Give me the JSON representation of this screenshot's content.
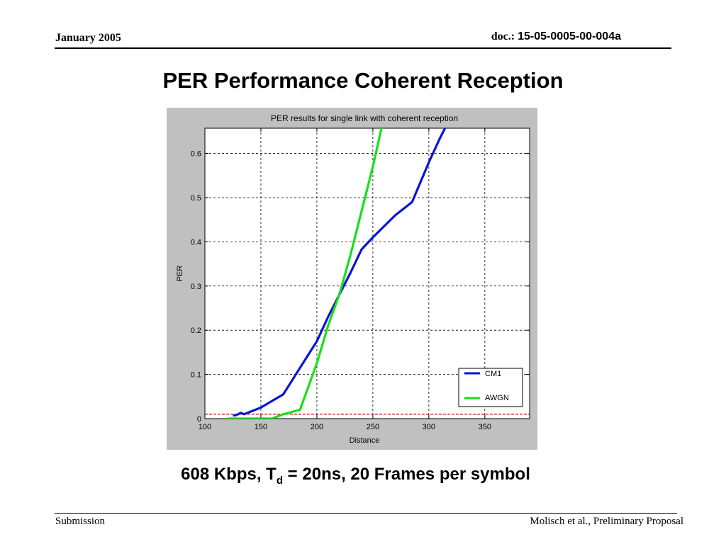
{
  "header": {
    "date": "January 2005",
    "doc_prefix": "doc.: ",
    "doc_number": "15-05-0005-00-004a"
  },
  "slide": {
    "title": "PER Performance Coherent Reception",
    "caption_part1": "608 Kbps, T",
    "caption_sub": "d",
    "caption_part2": " = 20ns, 20 Frames per symbol"
  },
  "footer": {
    "left": "Submission",
    "right": "Molisch et al., Preliminary Proposal"
  },
  "chart_data": {
    "type": "line",
    "title": "PER results for single link with coherent reception",
    "xlabel": "Distance",
    "ylabel": "PER",
    "xlim": [
      100,
      390
    ],
    "ylim": [
      0,
      0.657
    ],
    "xticks": [
      100,
      150,
      200,
      250,
      300,
      350
    ],
    "yticks": [
      0,
      0.1,
      0.2,
      0.3,
      0.4,
      0.5,
      0.6
    ],
    "grid": true,
    "legend_position": "bottom-right",
    "threshold": {
      "y": 0.01,
      "color": "#d00000",
      "style": "dashed"
    },
    "series": [
      {
        "name": "CM1",
        "color": "#0a14d2",
        "x": [
          125,
          128,
          132,
          135,
          140,
          150,
          160,
          170,
          185,
          200,
          210,
          220,
          230,
          240,
          250,
          260,
          270,
          280,
          285,
          300,
          310,
          315
        ],
        "y": [
          0.007,
          0.008,
          0.013,
          0.01,
          0.015,
          0.025,
          0.04,
          0.055,
          0.115,
          0.175,
          0.23,
          0.28,
          0.33,
          0.383,
          0.41,
          0.435,
          0.46,
          0.48,
          0.49,
          0.58,
          0.635,
          0.66
        ]
      },
      {
        "name": "AWGN",
        "color": "#18e018",
        "x": [
          120,
          140,
          150,
          160,
          170,
          185,
          195,
          200,
          210,
          220,
          230,
          240,
          250,
          258
        ],
        "y": [
          0,
          0,
          0,
          0,
          0.01,
          0.02,
          0.09,
          0.125,
          0.21,
          0.28,
          0.37,
          0.47,
          0.57,
          0.66
        ]
      }
    ]
  }
}
